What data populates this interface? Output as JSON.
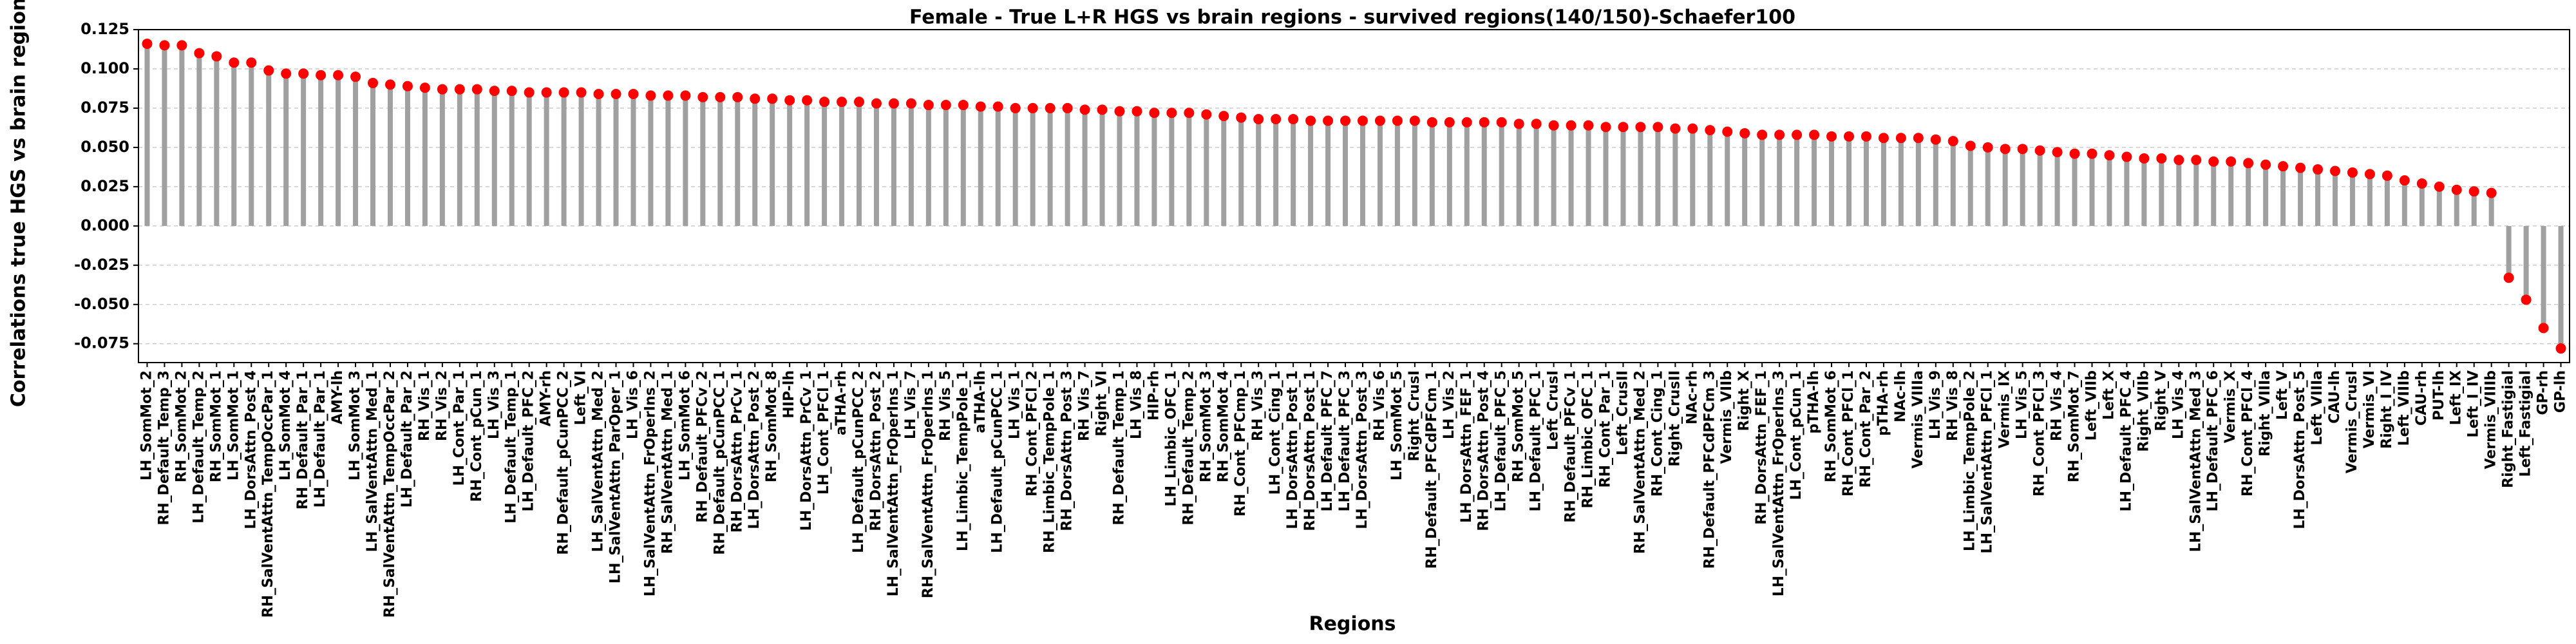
{
  "chart_data": {
    "type": "lollipop",
    "title": "Female - True L+R HGS vs brain regions - survived regions(140/150)-Schaefer100",
    "x_label": "Regions",
    "y_label": "Correlations true HGS vs brain regions",
    "stem_color": "#a0a0a0",
    "color": "#ff0000",
    "grid": true,
    "categories": [
      "LH_SomMot_2",
      "RH_Default_Temp_3",
      "RH_SomMot_2",
      "LH_Default_Temp_2",
      "RH_SomMot_1",
      "LH_SomMot_1",
      "LH_DorsAttn_Post_4",
      "RH_SalVentAttn_TempOccPar_1",
      "LH_SomMot_4",
      "RH_Default_Par_1",
      "LH_Default_Par_1",
      "AMY-lh",
      "LH_SomMot_3",
      "LH_SalVentAttn_Med_1",
      "RH_SalVentAttn_TempOccPar_2",
      "LH_Default_Par_2",
      "RH_Vis_1",
      "RH_Vis_2",
      "LH_Cont_Par_1",
      "RH_Cont_pCun_1",
      "LH_Vis_3",
      "LH_Default_Temp_1",
      "LH_Default_PFC_2",
      "AMY-rh",
      "RH_Default_pCunPCC_2",
      "Left_VI",
      "LH_SalVentAttn_Med_2",
      "LH_SalVentAttn_ParOper_1",
      "LH_Vis_6",
      "LH_SalVentAttn_FrOperIns_2",
      "RH_SalVentAttn_Med_1",
      "LH_SomMot_6",
      "RH_Default_PFCv_2",
      "RH_Default_pCunPCC_1",
      "RH_DorsAttn_PrCv_1",
      "LH_DorsAttn_Post_2",
      "RH_SomMot_8",
      "HIP-lh",
      "LH_DorsAttn_PrCv_1",
      "LH_Cont_PFCl_1",
      "aTHA-rh",
      "LH_Default_pCunPCC_2",
      "RH_DorsAttn_Post_2",
      "LH_SalVentAttn_FrOperIns_1",
      "LH_Vis_7",
      "RH_SalVentAttn_FrOperIns_1",
      "RH_Vis_5",
      "LH_Limbic_TempPole_1",
      "aTHA-lh",
      "LH_Default_pCunPCC_1",
      "LH_Vis_1",
      "RH_Cont_PFCl_2",
      "RH_Limbic_TempPole_1",
      "RH_DorsAttn_Post_3",
      "RH_Vis_7",
      "Right_VI",
      "RH_Default_Temp_1",
      "LH_Vis_8",
      "HIP-rh",
      "LH_Limbic_OFC_1",
      "RH_Default_Temp_2",
      "RH_SomMot_3",
      "RH_SomMot_4",
      "RH_Cont_PFCmp_1",
      "RH_Vis_3",
      "LH_Cont_Cing_1",
      "LH_DorsAttn_Post_1",
      "RH_DorsAttn_Post_1",
      "LH_Default_PFC_7",
      "LH_Default_PFC_3",
      "LH_DorsAttn_Post_3",
      "RH_Vis_6",
      "LH_SomMot_5",
      "Right_CrusI",
      "RH_Default_PFCdPFCm_1",
      "LH_Vis_2",
      "LH_DorsAttn_FEF_1",
      "RH_DorsAttn_Post_4",
      "LH_Default_PFC_5",
      "RH_SomMot_5",
      "LH_Default_PFC_1",
      "Left_CrusI",
      "RH_Default_PFCv_1",
      "RH_Limbic_OFC_1",
      "RH_Cont_Par_1",
      "Left_CrusII",
      "RH_SalVentAttn_Med_2",
      "RH_Cont_Cing_1",
      "Right_CrusII",
      "NAc-rh",
      "RH_Default_PFCdPFCm_3",
      "Vermis_VIIb",
      "Right_X",
      "RH_DorsAttn_FEF_1",
      "LH_SalVentAttn_FrOperIns_3",
      "LH_Cont_pCun_1",
      "pTHA-lh",
      "RH_SomMot_6",
      "RH_Cont_PFCl_1",
      "RH_Cont_Par_2",
      "pTHA-rh",
      "NAc-lh",
      "Vermis_VIIIa",
      "LH_Vis_9",
      "RH_Vis_8",
      "LH_Limbic_TempPole_2",
      "LH_SalVentAttn_PFCl_1",
      "Vermis_IX",
      "LH_Vis_5",
      "RH_Cont_PFCl_3",
      "RH_Vis_4",
      "RH_SomMot_7",
      "Left_VIIb",
      "Left_X",
      "LH_Default_PFC_4",
      "Right_VIIb",
      "Right_V",
      "LH_Vis_4",
      "LH_SalVentAttn_Med_3",
      "LH_Default_PFC_6",
      "Vermis_X",
      "RH_Cont_PFCl_4",
      "Right_VIIIa",
      "Left_V",
      "LH_DorsAttn_Post_5",
      "Left_VIIIa",
      "CAU-lh",
      "Vermis_CrusI",
      "Vermis_VI",
      "Right_I_IV",
      "Left_VIIIb",
      "CAU-rh",
      "PUT-lh",
      "Left_IX",
      "Left_I_IV",
      "Vermis_VIIIb",
      "Right_Fastigial",
      "Left_Fastigial",
      "GP-rh",
      "GP-lh"
    ],
    "values": [
      0.116,
      0.115,
      0.115,
      0.11,
      0.108,
      0.104,
      0.104,
      0.099,
      0.097,
      0.097,
      0.096,
      0.096,
      0.095,
      0.091,
      0.09,
      0.089,
      0.088,
      0.087,
      0.087,
      0.087,
      0.086,
      0.086,
      0.085,
      0.085,
      0.085,
      0.085,
      0.084,
      0.084,
      0.084,
      0.083,
      0.083,
      0.083,
      0.082,
      0.082,
      0.082,
      0.081,
      0.081,
      0.08,
      0.08,
      0.079,
      0.079,
      0.079,
      0.078,
      0.078,
      0.078,
      0.077,
      0.077,
      0.077,
      0.076,
      0.076,
      0.075,
      0.075,
      0.075,
      0.075,
      0.074,
      0.074,
      0.073,
      0.073,
      0.072,
      0.072,
      0.072,
      0.071,
      0.07,
      0.069,
      0.068,
      0.068,
      0.068,
      0.067,
      0.067,
      0.067,
      0.067,
      0.067,
      0.067,
      0.067,
      0.066,
      0.066,
      0.066,
      0.066,
      0.066,
      0.065,
      0.065,
      0.064,
      0.064,
      0.064,
      0.063,
      0.063,
      0.063,
      0.063,
      0.062,
      0.062,
      0.061,
      0.06,
      0.059,
      0.058,
      0.058,
      0.058,
      0.058,
      0.057,
      0.057,
      0.057,
      0.056,
      0.056,
      0.056,
      0.055,
      0.054,
      0.051,
      0.05,
      0.049,
      0.049,
      0.048,
      0.047,
      0.046,
      0.046,
      0.045,
      0.044,
      0.043,
      0.043,
      0.042,
      0.042,
      0.041,
      0.041,
      0.04,
      0.039,
      0.038,
      0.037,
      0.036,
      0.035,
      0.034,
      0.033,
      0.032,
      0.029,
      0.027,
      0.025,
      0.023,
      0.022,
      0.021,
      -0.033,
      -0.047,
      -0.065,
      -0.078
    ],
    "ylim": [
      -0.087,
      0.125
    ],
    "yticks": [
      -0.075,
      {
        "value": -0.05,
        "label": "-0.050"
      },
      -0.025,
      {
        "value": 0,
        "label": "0.000"
      },
      0.025,
      {
        "value": 0.05,
        "label": "0.050"
      },
      0.075,
      {
        "value": 0.1,
        "label": "0.100"
      },
      0.125
    ]
  }
}
